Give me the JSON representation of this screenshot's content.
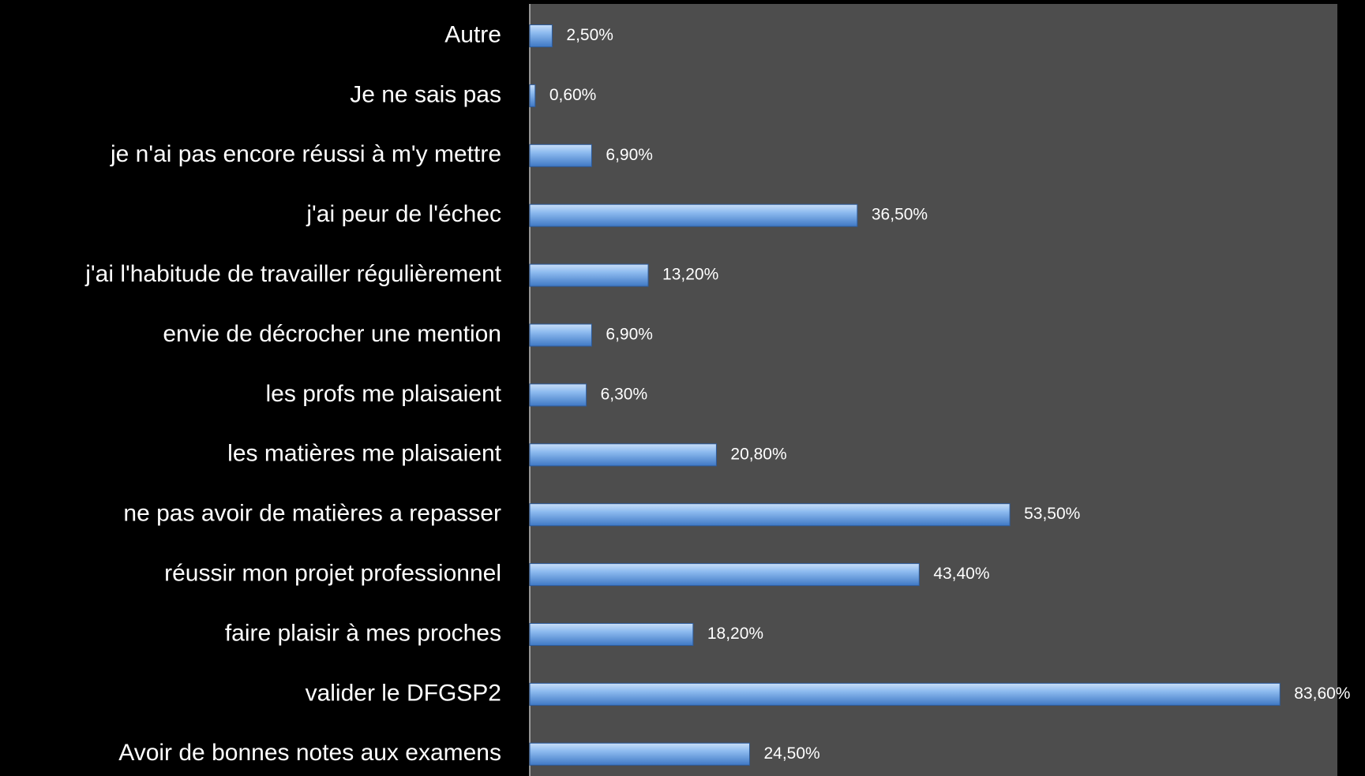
{
  "chart_data": {
    "type": "bar",
    "orientation": "horizontal",
    "categories": [
      "Autre",
      "Je ne sais pas",
      "je n'ai pas encore réussi à m'y mettre",
      "j'ai peur de l'échec",
      "j'ai l'habitude de travailler régulièrement",
      "envie de décrocher une mention",
      "les profs me plaisaient",
      "les matières me plaisaient",
      "ne pas avoir de matières a repasser",
      "réussir mon projet professionnel",
      "faire plaisir à mes proches",
      "valider le DFGSP2",
      "Avoir de bonnes notes aux examens"
    ],
    "values": [
      2.5,
      0.6,
      6.9,
      36.5,
      13.2,
      6.9,
      6.3,
      20.8,
      53.5,
      43.4,
      18.2,
      83.6,
      24.5
    ],
    "value_labels": [
      "2,50%",
      "0,60%",
      "6,90%",
      "36,50%",
      "13,20%",
      "6,90%",
      "6,30%",
      "20,80%",
      "53,50%",
      "43,40%",
      "18,20%",
      "83,60%",
      "24,50%"
    ],
    "color": "#7aaee8",
    "xlim": [
      0,
      90
    ]
  }
}
